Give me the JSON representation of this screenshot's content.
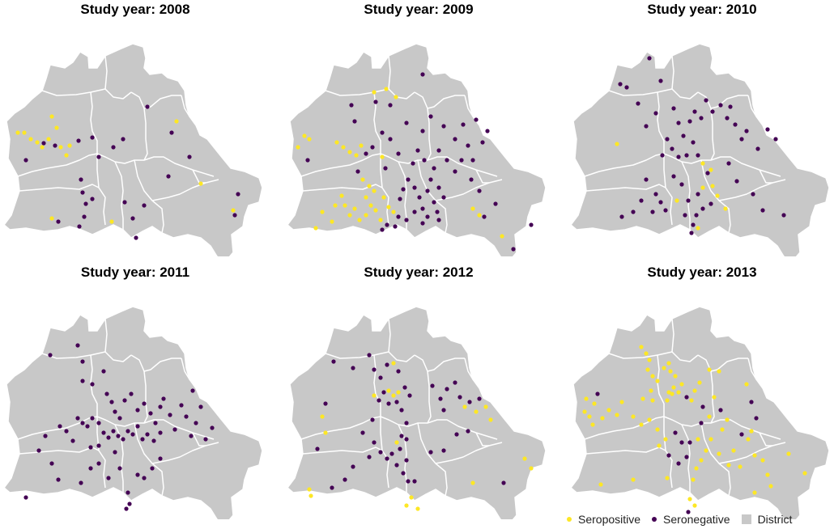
{
  "colors": {
    "seropositive": "#FDE725",
    "seronegative": "#440154",
    "district": "#C8C8C8",
    "border": "#FFFFFF"
  },
  "panels": [
    {
      "title": "Study year: 2008"
    },
    {
      "title": "Study year: 2009"
    },
    {
      "title": "Study year: 2010"
    },
    {
      "title": "Study year: 2011"
    },
    {
      "title": "Study year: 2012"
    },
    {
      "title": "Study year: 2013"
    }
  ],
  "legend": {
    "seropositive": "Seropositive",
    "seronegative": "Seronegative",
    "district": "District"
  }
}
